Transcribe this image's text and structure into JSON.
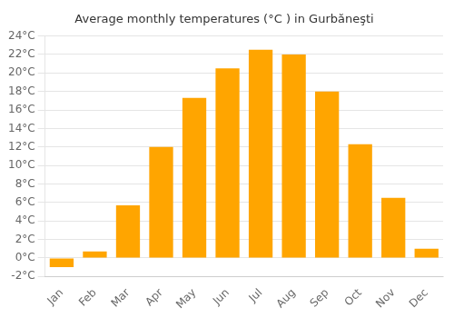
{
  "chart_data": {
    "type": "bar",
    "title": "Average monthly temperatures (°C ) in Gurbăneşti",
    "categories": [
      "Jan",
      "Feb",
      "Mar",
      "Apr",
      "May",
      "Jun",
      "Jul",
      "Aug",
      "Sep",
      "Oct",
      "Nov",
      "Dec"
    ],
    "values": [
      -1.0,
      0.7,
      5.7,
      12.0,
      17.3,
      20.5,
      22.5,
      22.0,
      18.0,
      12.3,
      6.5,
      1.0
    ],
    "color": "#FFA500",
    "ylim": [
      -2,
      24
    ],
    "yticks": [
      {
        "value": -2,
        "label": "-2°C"
      },
      {
        "value": 0,
        "label": "0°C"
      },
      {
        "value": 2,
        "label": "2°C"
      },
      {
        "value": 4,
        "label": "4°C"
      },
      {
        "value": 6,
        "label": "6°C"
      },
      {
        "value": 8,
        "label": "8°C"
      },
      {
        "value": 10,
        "label": "10°C"
      },
      {
        "value": 12,
        "label": "12°C"
      },
      {
        "value": 14,
        "label": "14°C"
      },
      {
        "value": 16,
        "label": "16°C"
      },
      {
        "value": 18,
        "label": "18°C"
      },
      {
        "value": 20,
        "label": "20°C"
      },
      {
        "value": 22,
        "label": "22°C"
      },
      {
        "value": 24,
        "label": "24°C"
      }
    ],
    "grid": true
  }
}
